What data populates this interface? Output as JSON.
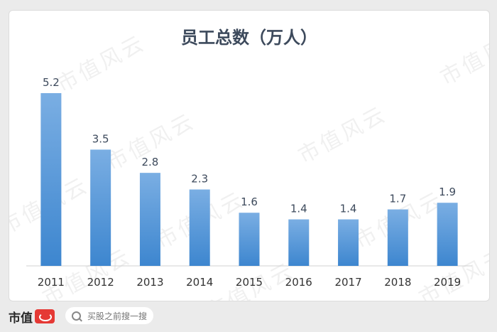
{
  "watermark": "市值风云",
  "chart_data": {
    "type": "bar",
    "title": "员工总数（万人）",
    "categories": [
      "2011",
      "2012",
      "2013",
      "2014",
      "2015",
      "2016",
      "2017",
      "2018",
      "2019"
    ],
    "values": [
      5.2,
      3.5,
      2.8,
      2.3,
      1.6,
      1.4,
      1.4,
      1.7,
      1.9
    ],
    "data_labels": [
      "5.2",
      "3.5",
      "2.8",
      "2.3",
      "1.6",
      "1.4",
      "1.4",
      "1.7",
      "1.9"
    ],
    "ylim": [
      0,
      5.2
    ],
    "grid": false,
    "bar_color_top": "#7aaee3",
    "bar_color_bottom": "#3d86cf"
  },
  "footer": {
    "brand": "市值",
    "search_placeholder": "买股之前搜一搜"
  }
}
